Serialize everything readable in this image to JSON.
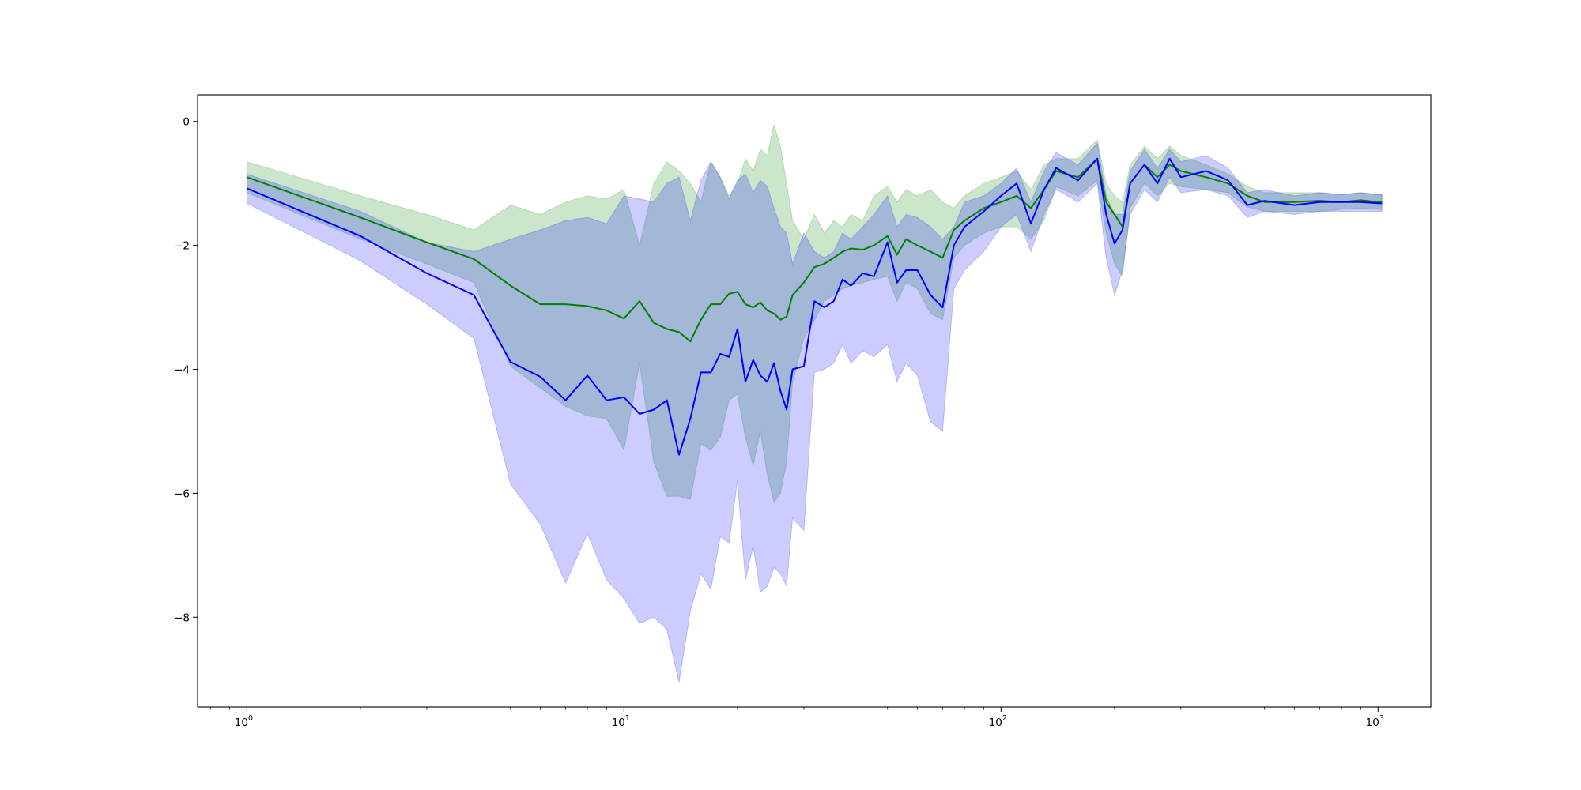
{
  "chart_data": {
    "type": "line",
    "title": "",
    "xlabel": "",
    "ylabel": "",
    "xscale": "log",
    "xlim": [
      0.74,
      1380
    ],
    "ylim": [
      -9.45,
      0.43
    ],
    "grid": false,
    "legend": "none",
    "x_ticks": [
      {
        "base": "10",
        "exp": "0",
        "value": 1
      },
      {
        "base": "10",
        "exp": "1",
        "value": 10
      },
      {
        "base": "10",
        "exp": "2",
        "value": 100
      },
      {
        "base": "10",
        "exp": "3",
        "value": 1000
      }
    ],
    "y_ticks": [
      {
        "label": "0",
        "value": 0
      },
      {
        "label": "−2",
        "value": -2
      },
      {
        "label": "−4",
        "value": -4
      },
      {
        "label": "−6",
        "value": -6
      },
      {
        "label": "−8",
        "value": -8
      }
    ],
    "series": [
      {
        "color": "#008000",
        "band_color": "#008000",
        "band_opacity": 0.2,
        "x": [
          1,
          2,
          3,
          4,
          5,
          6,
          7,
          8,
          9,
          10,
          11,
          12,
          13,
          14,
          15,
          16,
          17,
          18,
          19,
          20,
          21,
          22,
          23,
          24,
          25,
          26,
          27,
          28,
          30,
          32,
          34,
          36,
          38,
          40,
          43,
          46,
          50,
          53,
          56,
          60,
          65,
          70,
          75,
          80,
          90,
          100,
          110,
          120,
          130,
          140,
          160,
          180,
          190,
          200,
          210,
          220,
          240,
          260,
          280,
          300,
          350,
          400,
          450,
          500,
          600,
          700,
          800,
          900,
          1000,
          1024
        ],
        "y": [
          -0.9,
          -1.55,
          -1.95,
          -2.22,
          -2.65,
          -2.95,
          -2.95,
          -2.98,
          -3.05,
          -3.18,
          -2.9,
          -3.25,
          -3.35,
          -3.4,
          -3.55,
          -3.2,
          -2.95,
          -2.95,
          -2.78,
          -2.75,
          -2.95,
          -3.0,
          -2.92,
          -3.05,
          -3.1,
          -3.2,
          -3.15,
          -2.8,
          -2.6,
          -2.35,
          -2.3,
          -2.2,
          -2.1,
          -2.05,
          -2.07,
          -2.0,
          -1.85,
          -2.15,
          -1.9,
          -2.0,
          -2.1,
          -2.2,
          -1.75,
          -1.6,
          -1.4,
          -1.3,
          -1.2,
          -1.4,
          -1.1,
          -0.8,
          -0.9,
          -0.6,
          -1.3,
          -1.5,
          -1.7,
          -1.0,
          -0.7,
          -0.9,
          -0.7,
          -0.8,
          -0.9,
          -1.0,
          -1.2,
          -1.3,
          -1.3,
          -1.28,
          -1.3,
          -1.27,
          -1.3,
          -1.3
        ],
        "upper": [
          -0.65,
          -1.2,
          -1.5,
          -1.75,
          -1.35,
          -1.5,
          -1.3,
          -1.2,
          -1.25,
          -1.1,
          -2.0,
          -1.0,
          -0.65,
          -0.8,
          -1.0,
          -1.3,
          -0.65,
          -0.9,
          -1.2,
          -1.0,
          -0.6,
          -0.8,
          -0.45,
          -0.55,
          -0.05,
          -0.4,
          -1.0,
          -1.6,
          -1.9,
          -1.5,
          -1.8,
          -1.6,
          -1.7,
          -1.5,
          -1.6,
          -1.2,
          -1.05,
          -1.3,
          -1.1,
          -1.2,
          -1.1,
          -1.3,
          -1.4,
          -1.2,
          -1.0,
          -0.9,
          -0.8,
          -1.1,
          -0.7,
          -0.6,
          -0.6,
          -0.3,
          -1.0,
          -1.2,
          -1.3,
          -0.7,
          -0.4,
          -0.6,
          -0.4,
          -0.55,
          -0.7,
          -0.85,
          -1.05,
          -1.15,
          -1.15,
          -1.15,
          -1.18,
          -1.15,
          -1.18,
          -1.18
        ],
        "lower": [
          -1.15,
          -1.9,
          -2.3,
          -2.6,
          -3.95,
          -4.3,
          -4.6,
          -4.75,
          -4.8,
          -5.3,
          -3.9,
          -5.5,
          -6.05,
          -6.05,
          -6.1,
          -5.2,
          -5.3,
          -5.1,
          -4.5,
          -4.4,
          -5.1,
          -5.55,
          -5.0,
          -5.7,
          -6.15,
          -6.0,
          -5.5,
          -4.2,
          -3.5,
          -3.2,
          -2.9,
          -2.8,
          -2.7,
          -2.65,
          -2.6,
          -2.55,
          -2.5,
          -2.9,
          -2.6,
          -2.7,
          -3.1,
          -3.2,
          -2.2,
          -2.0,
          -1.8,
          -1.7,
          -1.7,
          -1.9,
          -1.6,
          -1.05,
          -1.2,
          -0.95,
          -1.8,
          -2.3,
          -2.5,
          -1.4,
          -1.0,
          -1.2,
          -1.0,
          -1.05,
          -1.1,
          -1.15,
          -1.38,
          -1.45,
          -1.45,
          -1.45,
          -1.42,
          -1.4,
          -1.42,
          -1.42
        ]
      },
      {
        "color": "#0000ff",
        "band_color": "#0000ff",
        "band_opacity": 0.2,
        "x": [
          1,
          2,
          3,
          4,
          5,
          6,
          7,
          8,
          9,
          10,
          11,
          12,
          13,
          14,
          15,
          16,
          17,
          18,
          19,
          20,
          21,
          22,
          23,
          24,
          25,
          26,
          27,
          28,
          30,
          32,
          34,
          36,
          38,
          40,
          43,
          46,
          50,
          53,
          56,
          60,
          65,
          70,
          75,
          80,
          90,
          100,
          110,
          120,
          130,
          140,
          160,
          180,
          190,
          200,
          210,
          220,
          240,
          260,
          280,
          300,
          350,
          400,
          450,
          500,
          600,
          700,
          800,
          900,
          1000,
          1024
        ],
        "y": [
          -1.08,
          -1.85,
          -2.45,
          -2.8,
          -3.88,
          -4.12,
          -4.5,
          -4.1,
          -4.5,
          -4.45,
          -4.72,
          -4.65,
          -4.5,
          -5.38,
          -4.8,
          -4.05,
          -4.05,
          -3.75,
          -3.8,
          -3.35,
          -4.2,
          -3.85,
          -4.1,
          -4.2,
          -3.9,
          -4.35,
          -4.65,
          -4.0,
          -3.95,
          -2.9,
          -3.0,
          -2.9,
          -2.55,
          -2.65,
          -2.45,
          -2.5,
          -1.95,
          -2.6,
          -2.4,
          -2.4,
          -2.8,
          -3.0,
          -2.0,
          -1.7,
          -1.45,
          -1.2,
          -1.0,
          -1.65,
          -1.1,
          -0.75,
          -0.95,
          -0.6,
          -1.5,
          -1.97,
          -1.75,
          -1.0,
          -0.7,
          -1.0,
          -0.6,
          -0.9,
          -0.8,
          -0.95,
          -1.35,
          -1.28,
          -1.35,
          -1.3,
          -1.3,
          -1.3,
          -1.32,
          -1.32
        ],
        "upper": [
          -0.85,
          -1.45,
          -1.95,
          -2.1,
          -1.9,
          -1.75,
          -1.6,
          -1.55,
          -1.65,
          -1.2,
          -1.25,
          -1.3,
          -1.0,
          -0.9,
          -1.6,
          -0.95,
          -0.65,
          -0.9,
          -1.25,
          -0.95,
          -0.85,
          -1.15,
          -0.95,
          -1.05,
          -1.4,
          -1.7,
          -1.8,
          -2.3,
          -1.8,
          -2.1,
          -2.2,
          -2.1,
          -1.8,
          -1.9,
          -1.7,
          -1.5,
          -1.2,
          -1.7,
          -1.5,
          -1.55,
          -1.7,
          -1.9,
          -1.7,
          -1.3,
          -1.2,
          -1.0,
          -0.75,
          -1.3,
          -0.8,
          -0.5,
          -0.7,
          -0.35,
          -1.2,
          -1.5,
          -1.5,
          -0.8,
          -0.45,
          -0.75,
          -0.45,
          -0.65,
          -0.55,
          -0.75,
          -1.15,
          -1.1,
          -1.2,
          -1.15,
          -1.18,
          -1.15,
          -1.18,
          -1.18
        ],
        "lower": [
          -1.32,
          -2.25,
          -2.95,
          -3.5,
          -5.85,
          -6.5,
          -7.45,
          -6.65,
          -7.4,
          -7.7,
          -8.1,
          -8.0,
          -8.2,
          -9.05,
          -7.9,
          -7.3,
          -7.55,
          -6.7,
          -6.8,
          -5.8,
          -7.4,
          -6.85,
          -7.6,
          -7.5,
          -7.2,
          -7.3,
          -7.5,
          -6.4,
          -6.6,
          -4.05,
          -4.0,
          -3.9,
          -3.6,
          -3.9,
          -3.7,
          -3.8,
          -3.6,
          -4.2,
          -3.9,
          -4.1,
          -4.85,
          -5.0,
          -2.7,
          -2.4,
          -2.1,
          -1.7,
          -1.5,
          -2.1,
          -1.5,
          -1.1,
          -1.3,
          -1.0,
          -2.2,
          -2.8,
          -2.4,
          -1.5,
          -1.1,
          -1.3,
          -0.9,
          -1.15,
          -1.1,
          -1.2,
          -1.55,
          -1.45,
          -1.5,
          -1.45,
          -1.45,
          -1.45,
          -1.45,
          -1.45
        ]
      }
    ]
  }
}
